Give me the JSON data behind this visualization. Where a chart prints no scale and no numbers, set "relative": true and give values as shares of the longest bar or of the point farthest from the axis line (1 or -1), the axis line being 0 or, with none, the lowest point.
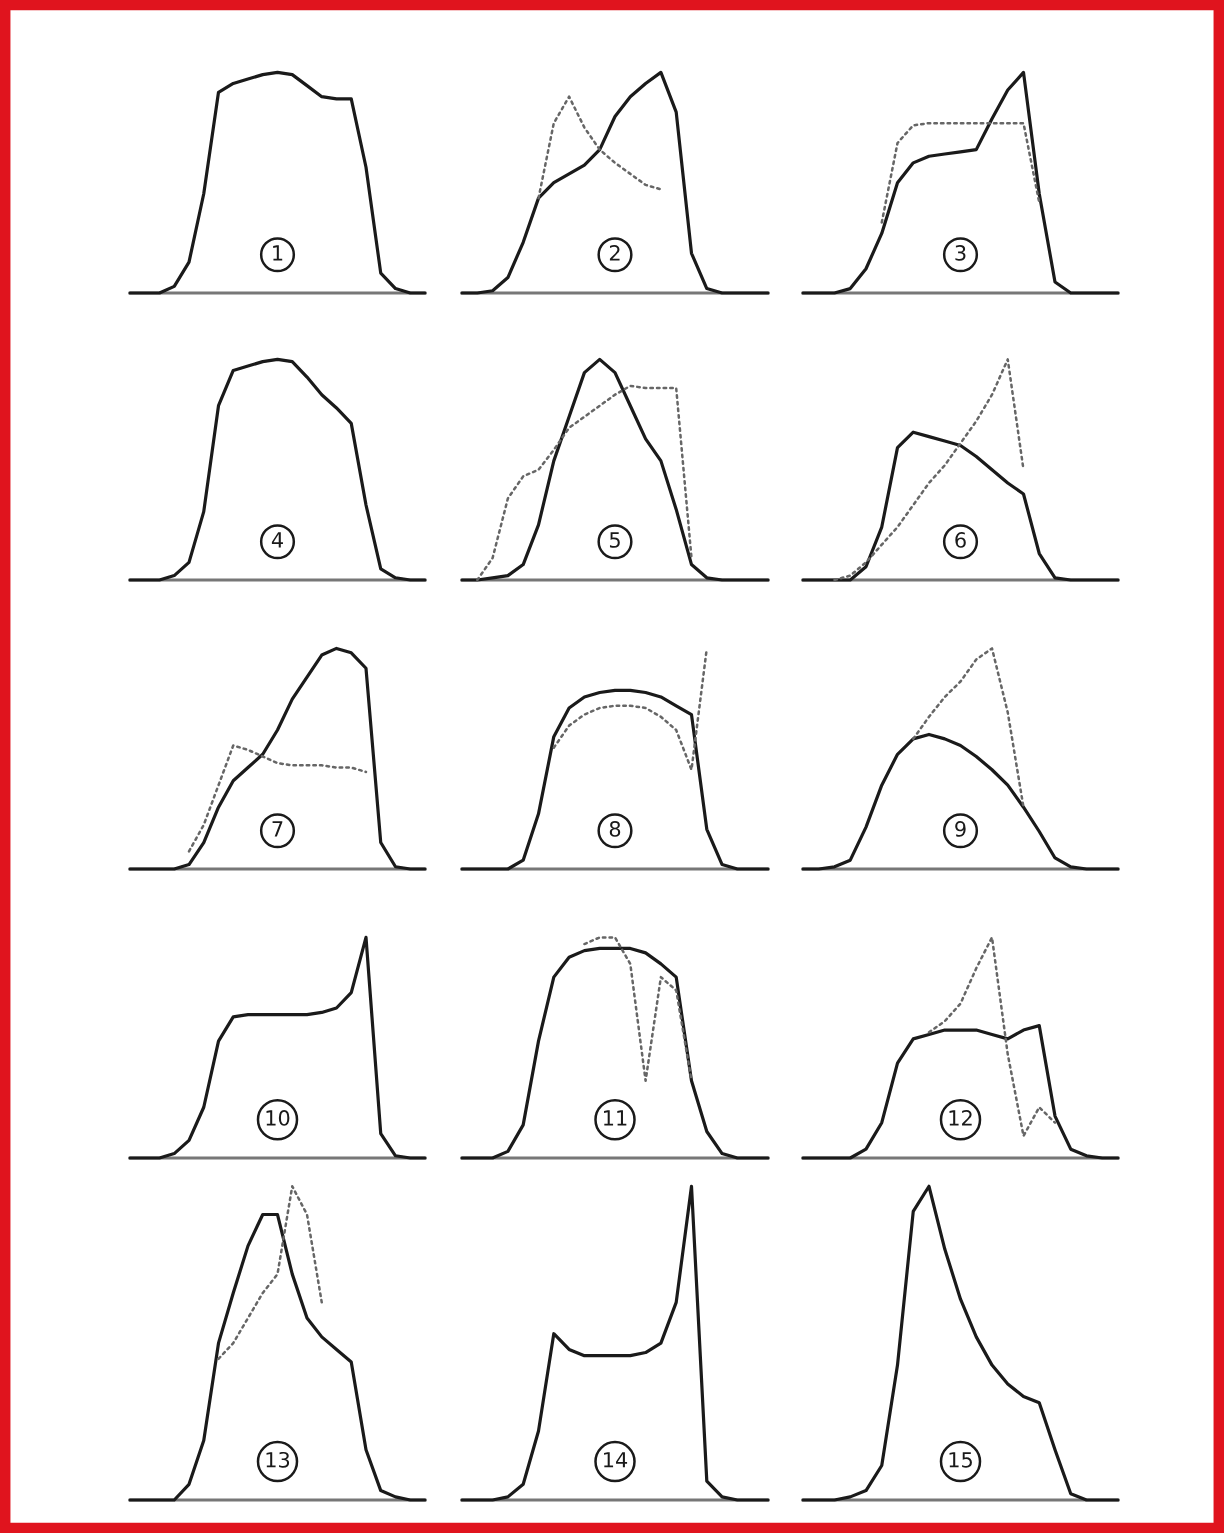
{
  "chart_data": [
    {
      "type": "line",
      "title": "1",
      "relative": true,
      "categories": [
        null,
        null,
        null,
        null,
        null,
        null,
        null,
        null,
        null,
        null,
        null,
        null,
        null,
        null,
        null,
        null,
        null,
        null,
        null,
        null,
        null
      ],
      "series": [
        {
          "color": "#1a1a1a",
          "line_style": "solid",
          "values": [
            0,
            0,
            0,
            0.03,
            0.14,
            0.45,
            0.91,
            0.95,
            0.97,
            0.99,
            1,
            0.99,
            0.94,
            0.89,
            0.88,
            0.88,
            0.57,
            0.09,
            0.02,
            0,
            0
          ]
        }
      ]
    },
    {
      "type": "line",
      "title": "2",
      "relative": true,
      "categories": [
        null,
        null,
        null,
        null,
        null,
        null,
        null,
        null,
        null,
        null,
        null,
        null,
        null,
        null,
        null,
        null,
        null,
        null,
        null,
        null,
        null
      ],
      "series": [
        {
          "color": "#1a1a1a",
          "line_style": "solid",
          "values": [
            0,
            0,
            0.01,
            0.07,
            0.23,
            0.43,
            0.5,
            0.54,
            0.58,
            0.65,
            0.8,
            0.89,
            0.95,
            1,
            0.82,
            0.18,
            0.02,
            0,
            0,
            0,
            0
          ]
        },
        {
          "color": "#666666",
          "line_style": "dotted",
          "values": [
            null,
            null,
            null,
            null,
            null,
            0.43,
            0.77,
            0.89,
            0.75,
            0.65,
            0.59,
            0.54,
            0.49,
            0.47,
            null,
            null,
            null,
            null,
            null,
            null,
            null
          ]
        }
      ]
    },
    {
      "type": "line",
      "title": "3",
      "relative": true,
      "categories": [
        null,
        null,
        null,
        null,
        null,
        null,
        null,
        null,
        null,
        null,
        null,
        null,
        null,
        null,
        null,
        null,
        null,
        null,
        null,
        null,
        null
      ],
      "series": [
        {
          "color": "#1a1a1a",
          "line_style": "solid",
          "values": [
            0,
            0,
            0,
            0.02,
            0.11,
            0.27,
            0.5,
            0.59,
            0.62,
            0.63,
            0.64,
            0.65,
            0.79,
            0.92,
            1,
            0.45,
            0.05,
            0,
            0,
            0,
            0
          ]
        },
        {
          "color": "#666666",
          "line_style": "dotted",
          "values": [
            null,
            null,
            null,
            null,
            null,
            0.32,
            0.68,
            0.76,
            0.77,
            0.77,
            0.77,
            0.77,
            0.77,
            0.77,
            0.77,
            0.41,
            null,
            null,
            null,
            null,
            null
          ]
        }
      ]
    },
    {
      "type": "line",
      "title": "4",
      "relative": true,
      "categories": [
        null,
        null,
        null,
        null,
        null,
        null,
        null,
        null,
        null,
        null,
        null,
        null,
        null,
        null,
        null,
        null,
        null,
        null,
        null,
        null,
        null
      ],
      "series": [
        {
          "color": "#1a1a1a",
          "line_style": "solid",
          "values": [
            0,
            0,
            0,
            0.02,
            0.08,
            0.31,
            0.79,
            0.95,
            0.97,
            0.99,
            1,
            0.99,
            0.92,
            0.84,
            0.78,
            0.71,
            0.34,
            0.05,
            0.01,
            0,
            0
          ]
        }
      ]
    },
    {
      "type": "line",
      "title": "5",
      "relative": true,
      "categories": [
        null,
        null,
        null,
        null,
        null,
        null,
        null,
        null,
        null,
        null,
        null,
        null,
        null,
        null,
        null,
        null,
        null,
        null,
        null,
        null,
        null
      ],
      "series": [
        {
          "color": "#1a1a1a",
          "line_style": "solid",
          "values": [
            0,
            0,
            0.01,
            0.02,
            0.07,
            0.25,
            0.54,
            0.74,
            0.94,
            1,
            0.94,
            0.79,
            0.64,
            0.54,
            0.32,
            0.07,
            0.01,
            0,
            0,
            0,
            0
          ]
        },
        {
          "color": "#666666",
          "line_style": "dotted",
          "values": [
            null,
            0,
            0.1,
            0.37,
            0.47,
            0.5,
            0.59,
            0.69,
            0.74,
            0.79,
            0.84,
            0.88,
            0.87,
            0.87,
            0.87,
            0.1,
            null,
            null,
            null,
            null,
            null
          ]
        }
      ]
    },
    {
      "type": "line",
      "title": "6",
      "relative": true,
      "categories": [
        null,
        null,
        null,
        null,
        null,
        null,
        null,
        null,
        null,
        null,
        null,
        null,
        null,
        null,
        null,
        null,
        null,
        null,
        null,
        null,
        null
      ],
      "series": [
        {
          "color": "#1a1a1a",
          "line_style": "solid",
          "values": [
            0,
            0,
            0,
            0,
            0.06,
            0.24,
            0.6,
            0.67,
            0.65,
            0.63,
            0.61,
            0.56,
            0.5,
            0.44,
            0.39,
            0.12,
            0.01,
            0,
            0,
            0,
            0
          ]
        },
        {
          "color": "#666666",
          "line_style": "dotted",
          "values": [
            null,
            null,
            0,
            0.02,
            0.08,
            0.16,
            0.24,
            0.34,
            0.44,
            0.52,
            0.62,
            0.72,
            0.84,
            1,
            0.5,
            null,
            null,
            null,
            null,
            null,
            null
          ]
        }
      ]
    },
    {
      "type": "line",
      "title": "7",
      "relative": true,
      "categories": [
        null,
        null,
        null,
        null,
        null,
        null,
        null,
        null,
        null,
        null,
        null,
        null,
        null,
        null,
        null,
        null,
        null,
        null,
        null,
        null,
        null
      ],
      "series": [
        {
          "color": "#1a1a1a",
          "line_style": "solid",
          "values": [
            0,
            0,
            0,
            0,
            0.02,
            0.12,
            0.28,
            0.4,
            0.46,
            0.52,
            0.63,
            0.77,
            0.87,
            0.97,
            1,
            0.98,
            0.91,
            0.12,
            0.01,
            0,
            0
          ]
        },
        {
          "color": "#666666",
          "line_style": "dotted",
          "values": [
            null,
            null,
            null,
            null,
            0.08,
            0.2,
            0.38,
            0.56,
            0.54,
            0.51,
            0.48,
            0.47,
            0.47,
            0.47,
            0.46,
            0.46,
            0.44,
            null,
            null,
            null,
            null
          ]
        }
      ]
    },
    {
      "type": "line",
      "title": "8",
      "relative": true,
      "categories": [
        null,
        null,
        null,
        null,
        null,
        null,
        null,
        null,
        null,
        null,
        null,
        null,
        null,
        null,
        null,
        null,
        null,
        null,
        null,
        null,
        null
      ],
      "series": [
        {
          "color": "#1a1a1a",
          "line_style": "solid",
          "values": [
            0,
            0,
            0,
            0,
            0.04,
            0.25,
            0.6,
            0.73,
            0.78,
            0.8,
            0.81,
            0.81,
            0.8,
            0.78,
            0.74,
            0.7,
            0.18,
            0.02,
            0,
            0,
            0
          ]
        },
        {
          "color": "#666666",
          "line_style": "dotted",
          "values": [
            null,
            null,
            null,
            null,
            null,
            null,
            0.55,
            0.65,
            0.7,
            0.73,
            0.74,
            0.74,
            0.73,
            0.69,
            0.63,
            0.45,
            1,
            null,
            null,
            null,
            null
          ]
        }
      ]
    },
    {
      "type": "line",
      "title": "9",
      "relative": true,
      "categories": [
        null,
        null,
        null,
        null,
        null,
        null,
        null,
        null,
        null,
        null,
        null,
        null,
        null,
        null,
        null,
        null,
        null,
        null,
        null,
        null,
        null
      ],
      "series": [
        {
          "color": "#1a1a1a",
          "line_style": "solid",
          "values": [
            0,
            0,
            0.01,
            0.04,
            0.19,
            0.38,
            0.52,
            0.59,
            0.61,
            0.59,
            0.56,
            0.51,
            0.45,
            0.38,
            0.28,
            0.17,
            0.05,
            0.01,
            0,
            0,
            0
          ]
        },
        {
          "color": "#666666",
          "line_style": "dotted",
          "values": [
            null,
            null,
            null,
            null,
            null,
            null,
            null,
            0.59,
            0.69,
            0.78,
            0.85,
            0.95,
            1,
            0.71,
            0.28,
            null,
            null,
            null,
            null,
            null,
            null
          ]
        }
      ]
    },
    {
      "type": "line",
      "title": "10",
      "relative": true,
      "categories": [
        null,
        null,
        null,
        null,
        null,
        null,
        null,
        null,
        null,
        null,
        null,
        null,
        null,
        null,
        null,
        null,
        null,
        null,
        null,
        null,
        null
      ],
      "series": [
        {
          "color": "#1a1a1a",
          "line_style": "solid",
          "values": [
            0,
            0,
            0,
            0.02,
            0.08,
            0.23,
            0.53,
            0.64,
            0.65,
            0.65,
            0.65,
            0.65,
            0.65,
            0.66,
            0.68,
            0.75,
            1,
            0.11,
            0.01,
            0,
            0
          ]
        }
      ]
    },
    {
      "type": "line",
      "title": "11",
      "relative": true,
      "categories": [
        null,
        null,
        null,
        null,
        null,
        null,
        null,
        null,
        null,
        null,
        null,
        null,
        null,
        null,
        null,
        null,
        null,
        null,
        null,
        null,
        null
      ],
      "series": [
        {
          "color": "#1a1a1a",
          "line_style": "solid",
          "values": [
            0,
            0,
            0,
            0.03,
            0.15,
            0.53,
            0.82,
            0.91,
            0.94,
            0.95,
            0.95,
            0.95,
            0.93,
            0.88,
            0.82,
            0.35,
            0.12,
            0.02,
            0,
            0,
            0
          ]
        },
        {
          "color": "#666666",
          "line_style": "dotted",
          "values": [
            null,
            null,
            null,
            null,
            null,
            null,
            null,
            null,
            0.97,
            1,
            1,
            0.88,
            0.35,
            0.82,
            0.76,
            0.35,
            null,
            null,
            null,
            null,
            null
          ]
        }
      ]
    },
    {
      "type": "line",
      "title": "12",
      "relative": true,
      "categories": [
        null,
        null,
        null,
        null,
        null,
        null,
        null,
        null,
        null,
        null,
        null,
        null,
        null,
        null,
        null,
        null,
        null,
        null,
        null,
        null,
        null
      ],
      "series": [
        {
          "color": "#1a1a1a",
          "line_style": "solid",
          "values": [
            0,
            0,
            0,
            0,
            0.04,
            0.16,
            0.43,
            0.54,
            0.56,
            0.58,
            0.58,
            0.58,
            0.56,
            0.54,
            0.58,
            0.6,
            0.19,
            0.04,
            0.01,
            0,
            0
          ]
        },
        {
          "color": "#666666",
          "line_style": "dotted",
          "values": [
            null,
            null,
            null,
            null,
            null,
            null,
            null,
            null,
            0.57,
            0.62,
            0.7,
            0.86,
            1,
            0.47,
            0.1,
            0.23,
            0.16,
            null,
            null,
            null,
            null
          ]
        }
      ]
    },
    {
      "type": "line",
      "title": "13",
      "relative": true,
      "categories": [
        null,
        null,
        null,
        null,
        null,
        null,
        null,
        null,
        null,
        null,
        null,
        null,
        null,
        null,
        null,
        null,
        null,
        null,
        null,
        null,
        null
      ],
      "series": [
        {
          "color": "#1a1a1a",
          "line_style": "solid",
          "values": [
            0,
            0,
            0,
            0,
            0.05,
            0.19,
            0.5,
            0.66,
            0.81,
            0.91,
            0.91,
            0.72,
            0.58,
            0.52,
            0.48,
            0.44,
            0.16,
            0.03,
            0.01,
            0,
            0
          ]
        },
        {
          "color": "#666666",
          "line_style": "dotted",
          "values": [
            null,
            null,
            null,
            null,
            null,
            null,
            0.45,
            0.5,
            0.58,
            0.66,
            0.72,
            1,
            0.91,
            0.63,
            null,
            null,
            null,
            null,
            null,
            null,
            null
          ]
        }
      ]
    },
    {
      "type": "line",
      "title": "14",
      "relative": true,
      "categories": [
        null,
        null,
        null,
        null,
        null,
        null,
        null,
        null,
        null,
        null,
        null,
        null,
        null,
        null,
        null,
        null,
        null,
        null,
        null,
        null,
        null
      ],
      "series": [
        {
          "color": "#1a1a1a",
          "line_style": "solid",
          "values": [
            0,
            0,
            0,
            0.01,
            0.05,
            0.22,
            0.53,
            0.48,
            0.46,
            0.46,
            0.46,
            0.46,
            0.47,
            0.5,
            0.63,
            1,
            0.06,
            0.01,
            0,
            0,
            0
          ]
        }
      ]
    },
    {
      "type": "line",
      "title": "15",
      "relative": true,
      "categories": [
        null,
        null,
        null,
        null,
        null,
        null,
        null,
        null,
        null,
        null,
        null,
        null,
        null,
        null,
        null,
        null,
        null,
        null,
        null,
        null,
        null
      ],
      "series": [
        {
          "color": "#1a1a1a",
          "line_style": "solid",
          "values": [
            0,
            0,
            0,
            0.01,
            0.03,
            0.11,
            0.43,
            0.92,
            1,
            0.8,
            0.64,
            0.52,
            0.43,
            0.37,
            0.33,
            0.31,
            0.16,
            0.02,
            0,
            0,
            0
          ]
        }
      ]
    }
  ]
}
